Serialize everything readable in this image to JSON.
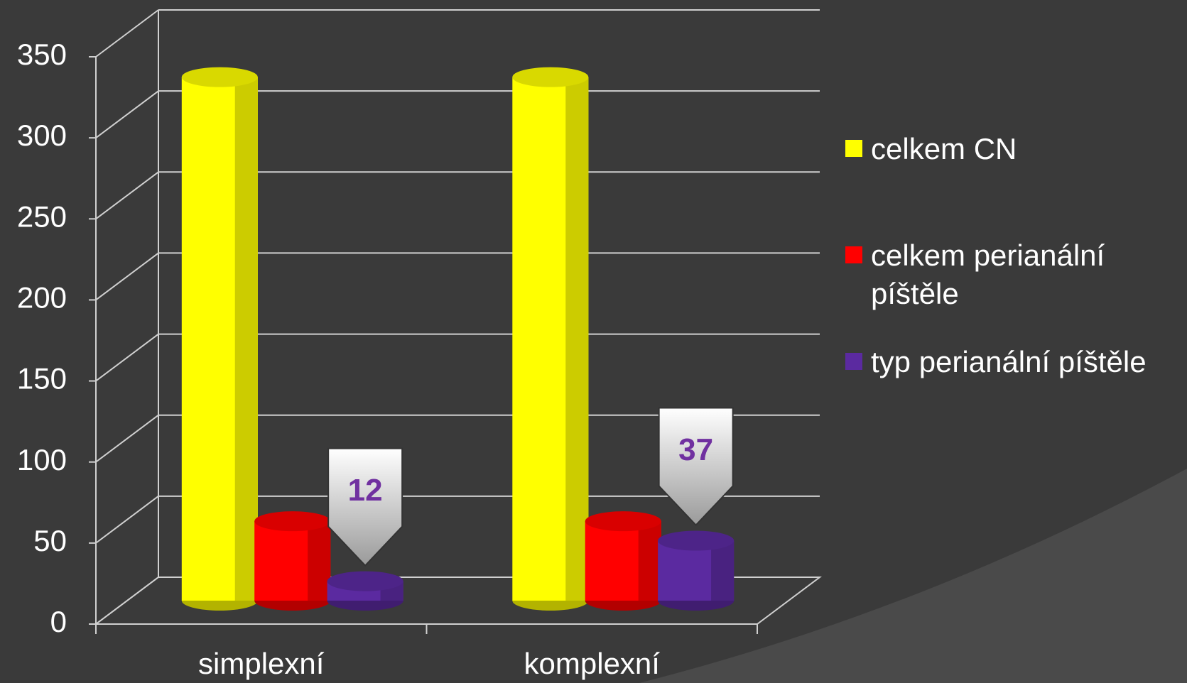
{
  "chart_data": {
    "type": "bar3d",
    "categories": [
      "simplexní",
      "komplexní"
    ],
    "series": [
      {
        "name": "celkem CN",
        "color": "#ffff00",
        "values": [
          323,
          323
        ]
      },
      {
        "name": "celkem perianální píštěle",
        "color": "#ff0000",
        "values": [
          49,
          49
        ]
      },
      {
        "name": "typ perianální píštěle",
        "color": "#5b2aa0",
        "values": [
          12,
          37
        ]
      }
    ],
    "ylim": [
      0,
      350
    ],
    "yticks": [
      0,
      50,
      100,
      150,
      200,
      250,
      300,
      350
    ],
    "grid": true
  }
}
